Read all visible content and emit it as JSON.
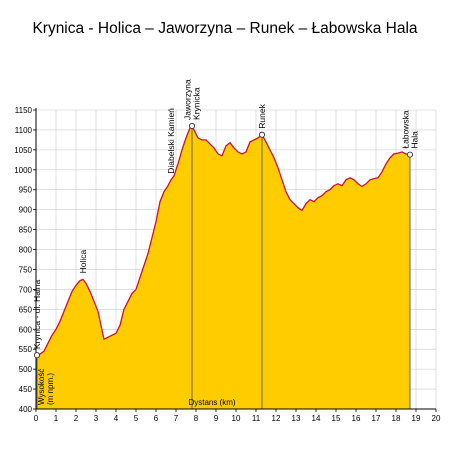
{
  "chart_data": {
    "type": "area",
    "title": "Krynica - Holica – Jaworzyna – Runek – Łabowska Hala",
    "xlabel": "Dystans (km)",
    "ylabel": [
      "Wysokość",
      "(m npm.)"
    ],
    "xlim": [
      0,
      20
    ],
    "ylim": [
      400,
      1150
    ],
    "x_ticks": [
      "0",
      "1",
      "2",
      "3",
      "4",
      "5",
      "6",
      "7",
      "8",
      "9",
      "10",
      "11",
      "12",
      "13",
      "14",
      "15",
      "16",
      "17",
      "18",
      "19",
      "20"
    ],
    "y_ticks": [
      "400",
      "450",
      "500",
      "550",
      "600",
      "650",
      "700",
      "750",
      "800",
      "850",
      "900",
      "950",
      "1000",
      "1050",
      "1100",
      "1150"
    ],
    "grid": true,
    "colors": {
      "fill": "#ffcc00",
      "line": "#c8103c",
      "grid": "#cccccc",
      "axis": "#000000"
    },
    "points": [
      [
        0.05,
        535
      ],
      [
        0.2,
        538
      ],
      [
        0.4,
        545
      ],
      [
        0.6,
        565
      ],
      [
        0.8,
        585
      ],
      [
        1.0,
        600
      ],
      [
        1.2,
        620
      ],
      [
        1.4,
        645
      ],
      [
        1.6,
        670
      ],
      [
        1.8,
        695
      ],
      [
        2.0,
        710
      ],
      [
        2.2,
        722
      ],
      [
        2.35,
        725
      ],
      [
        2.5,
        715
      ],
      [
        2.7,
        695
      ],
      [
        2.9,
        670
      ],
      [
        3.1,
        645
      ],
      [
        3.25,
        610
      ],
      [
        3.4,
        575
      ],
      [
        3.6,
        580
      ],
      [
        3.8,
        585
      ],
      [
        4.0,
        590
      ],
      [
        4.2,
        610
      ],
      [
        4.4,
        650
      ],
      [
        4.6,
        670
      ],
      [
        4.8,
        690
      ],
      [
        5.0,
        700
      ],
      [
        5.2,
        730
      ],
      [
        5.4,
        760
      ],
      [
        5.6,
        790
      ],
      [
        5.8,
        830
      ],
      [
        6.0,
        870
      ],
      [
        6.2,
        920
      ],
      [
        6.4,
        945
      ],
      [
        6.6,
        960
      ],
      [
        6.75,
        975
      ],
      [
        6.9,
        985
      ],
      [
        7.1,
        1015
      ],
      [
        7.3,
        1050
      ],
      [
        7.5,
        1080
      ],
      [
        7.7,
        1105
      ],
      [
        7.8,
        1110
      ],
      [
        7.95,
        1095
      ],
      [
        8.1,
        1080
      ],
      [
        8.3,
        1075
      ],
      [
        8.5,
        1075
      ],
      [
        8.7,
        1065
      ],
      [
        8.9,
        1055
      ],
      [
        9.1,
        1040
      ],
      [
        9.3,
        1035
      ],
      [
        9.5,
        1060
      ],
      [
        9.7,
        1068
      ],
      [
        9.9,
        1055
      ],
      [
        10.1,
        1045
      ],
      [
        10.3,
        1040
      ],
      [
        10.5,
        1045
      ],
      [
        10.7,
        1070
      ],
      [
        10.9,
        1075
      ],
      [
        11.1,
        1080
      ],
      [
        11.3,
        1088
      ],
      [
        11.5,
        1070
      ],
      [
        11.7,
        1050
      ],
      [
        11.9,
        1030
      ],
      [
        12.1,
        1005
      ],
      [
        12.3,
        975
      ],
      [
        12.5,
        945
      ],
      [
        12.7,
        925
      ],
      [
        12.9,
        915
      ],
      [
        13.1,
        905
      ],
      [
        13.3,
        898
      ],
      [
        13.5,
        915
      ],
      [
        13.7,
        925
      ],
      [
        13.9,
        920
      ],
      [
        14.1,
        930
      ],
      [
        14.3,
        935
      ],
      [
        14.5,
        945
      ],
      [
        14.7,
        950
      ],
      [
        14.9,
        960
      ],
      [
        15.1,
        965
      ],
      [
        15.3,
        960
      ],
      [
        15.5,
        975
      ],
      [
        15.7,
        980
      ],
      [
        15.9,
        975
      ],
      [
        16.1,
        965
      ],
      [
        16.3,
        958
      ],
      [
        16.5,
        965
      ],
      [
        16.7,
        975
      ],
      [
        16.9,
        978
      ],
      [
        17.1,
        980
      ],
      [
        17.3,
        995
      ],
      [
        17.5,
        1015
      ],
      [
        17.7,
        1030
      ],
      [
        17.9,
        1040
      ],
      [
        18.1,
        1042
      ],
      [
        18.3,
        1045
      ],
      [
        18.5,
        1040
      ],
      [
        18.7,
        1038
      ]
    ],
    "annotations": [
      {
        "x": 0.05,
        "y": 535,
        "lines": [
          "Krynica - ul. Halna"
        ]
      },
      {
        "x": 2.35,
        "y": 725,
        "lines": [
          "Holica"
        ]
      },
      {
        "x": 6.75,
        "y": 975,
        "lines": [
          "Diabelski Kamień"
        ]
      },
      {
        "x": 7.8,
        "y": 1110,
        "lines": [
          "Jaworzyna",
          "Krynicka"
        ]
      },
      {
        "x": 11.3,
        "y": 1088,
        "lines": [
          "Runek"
        ]
      },
      {
        "x": 18.7,
        "y": 1038,
        "lines": [
          "Łabowska",
          "Hala"
        ]
      }
    ],
    "marked_points": [
      {
        "x": 0.05,
        "y": 535
      },
      {
        "x": 7.8,
        "y": 1110
      },
      {
        "x": 11.3,
        "y": 1088
      },
      {
        "x": 18.7,
        "y": 1038
      }
    ]
  }
}
